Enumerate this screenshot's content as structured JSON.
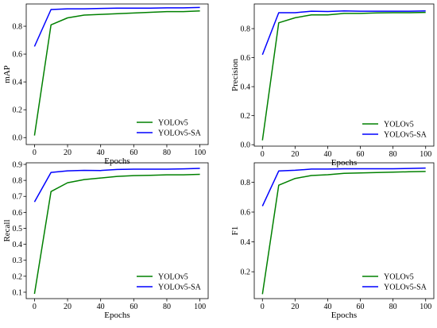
{
  "colors": {
    "yolov5": "#008000",
    "yolov5_sa": "#0000ff",
    "axis": "#000000"
  },
  "chart_data": [
    {
      "type": "line",
      "xlabel": "Epochs",
      "ylabel": "mAP",
      "xlim": [
        -5,
        105
      ],
      "ylim": [
        -0.05,
        0.96
      ],
      "xticks": [
        "0",
        "20",
        "40",
        "60",
        "80",
        "100"
      ],
      "yticks": [
        "0.0",
        "0.2",
        "0.4",
        "0.6",
        "0.8"
      ],
      "legend_position": "lower-right",
      "x": [
        0,
        10,
        20,
        30,
        40,
        50,
        60,
        70,
        80,
        90,
        100
      ],
      "series": [
        {
          "name": "YOLOv5",
          "color": "#008000",
          "values": [
            0.015,
            0.81,
            0.86,
            0.88,
            0.885,
            0.89,
            0.895,
            0.9,
            0.905,
            0.905,
            0.91
          ]
        },
        {
          "name": "YOLOv5-SA",
          "color": "#0000ff",
          "values": [
            0.655,
            0.92,
            0.925,
            0.925,
            0.928,
            0.93,
            0.93,
            0.93,
            0.932,
            0.932,
            0.935
          ]
        }
      ]
    },
    {
      "type": "line",
      "xlabel": "Epochs",
      "ylabel": "Precision",
      "xlim": [
        -5,
        105
      ],
      "ylim": [
        -0.01,
        0.97
      ],
      "xticks": [
        "0",
        "20",
        "40",
        "60",
        "80",
        "100"
      ],
      "yticks": [
        "0.0",
        "0.2",
        "0.4",
        "0.6",
        "0.8"
      ],
      "legend_position": "lower-right",
      "x": [
        0,
        10,
        20,
        30,
        40,
        50,
        60,
        70,
        80,
        90,
        100
      ],
      "series": [
        {
          "name": "YOLOv5",
          "color": "#008000",
          "values": [
            0.03,
            0.84,
            0.875,
            0.895,
            0.895,
            0.905,
            0.905,
            0.908,
            0.91,
            0.91,
            0.912
          ]
        },
        {
          "name": "YOLOv5-SA",
          "color": "#0000ff",
          "values": [
            0.62,
            0.91,
            0.91,
            0.92,
            0.918,
            0.922,
            0.92,
            0.92,
            0.92,
            0.92,
            0.922
          ]
        }
      ]
    },
    {
      "type": "line",
      "xlabel": "Epochs",
      "ylabel": "Recall",
      "xlim": [
        -5,
        105
      ],
      "ylim": [
        0.06,
        0.91
      ],
      "xticks": [
        "0",
        "20",
        "40",
        "60",
        "80",
        "100"
      ],
      "yticks": [
        "0.1",
        "0.2",
        "0.3",
        "0.4",
        "0.5",
        "0.6",
        "0.7",
        "0.8",
        "0.9"
      ],
      "legend_position": "lower-right",
      "x": [
        0,
        10,
        20,
        30,
        40,
        50,
        60,
        70,
        80,
        90,
        100
      ],
      "series": [
        {
          "name": "YOLOv5",
          "color": "#008000",
          "values": [
            0.09,
            0.73,
            0.785,
            0.805,
            0.815,
            0.825,
            0.83,
            0.832,
            0.835,
            0.835,
            0.838
          ]
        },
        {
          "name": "YOLOv5-SA",
          "color": "#0000ff",
          "values": [
            0.665,
            0.85,
            0.86,
            0.863,
            0.862,
            0.868,
            0.87,
            0.87,
            0.87,
            0.872,
            0.875
          ]
        }
      ]
    },
    {
      "type": "line",
      "xlabel": "Epochs",
      "ylabel": "F1",
      "xlim": [
        -5,
        105
      ],
      "ylim": [
        0.02,
        0.93
      ],
      "xticks": [
        "0",
        "20",
        "40",
        "60",
        "80",
        "100"
      ],
      "yticks": [
        "0.2",
        "0.4",
        "0.6",
        "0.8"
      ],
      "legend_position": "lower-right",
      "x": [
        0,
        10,
        20,
        30,
        40,
        50,
        60,
        70,
        80,
        90,
        100
      ],
      "series": [
        {
          "name": "YOLOv5",
          "color": "#008000",
          "values": [
            0.05,
            0.78,
            0.825,
            0.845,
            0.85,
            0.86,
            0.862,
            0.865,
            0.868,
            0.87,
            0.872
          ]
        },
        {
          "name": "YOLOv5-SA",
          "color": "#0000ff",
          "values": [
            0.64,
            0.875,
            0.88,
            0.888,
            0.888,
            0.89,
            0.89,
            0.89,
            0.89,
            0.892,
            0.895
          ]
        }
      ]
    }
  ]
}
